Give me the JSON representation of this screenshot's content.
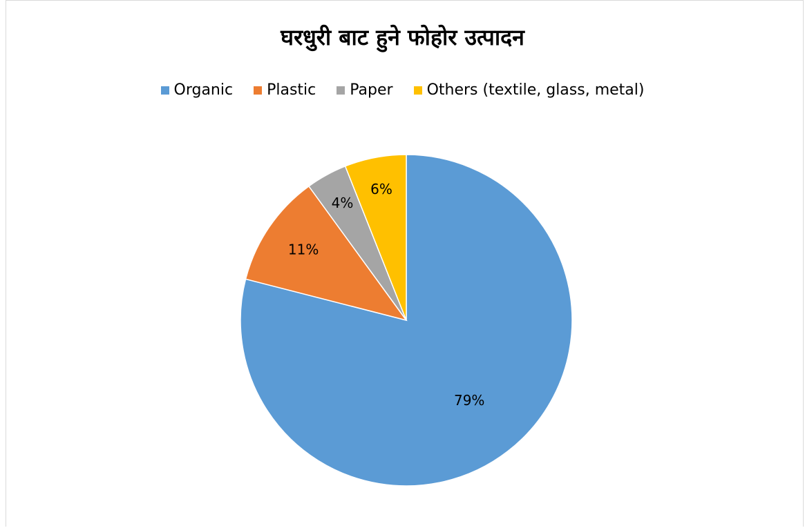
{
  "chart_data": {
    "type": "pie",
    "title": "घरधुरी बाट हुने फोहोर उत्पादन",
    "legend_position": "top",
    "categories": [
      "Organic",
      "Plastic",
      "Paper",
      "Others (textile, glass, metal)"
    ],
    "values": [
      79,
      11,
      4,
      6
    ],
    "data_labels": [
      "79%",
      "11%",
      "4%",
      "6%"
    ],
    "colors": [
      "#5b9bd5",
      "#ed7d31",
      "#a5a5a5",
      "#ffc000"
    ]
  }
}
